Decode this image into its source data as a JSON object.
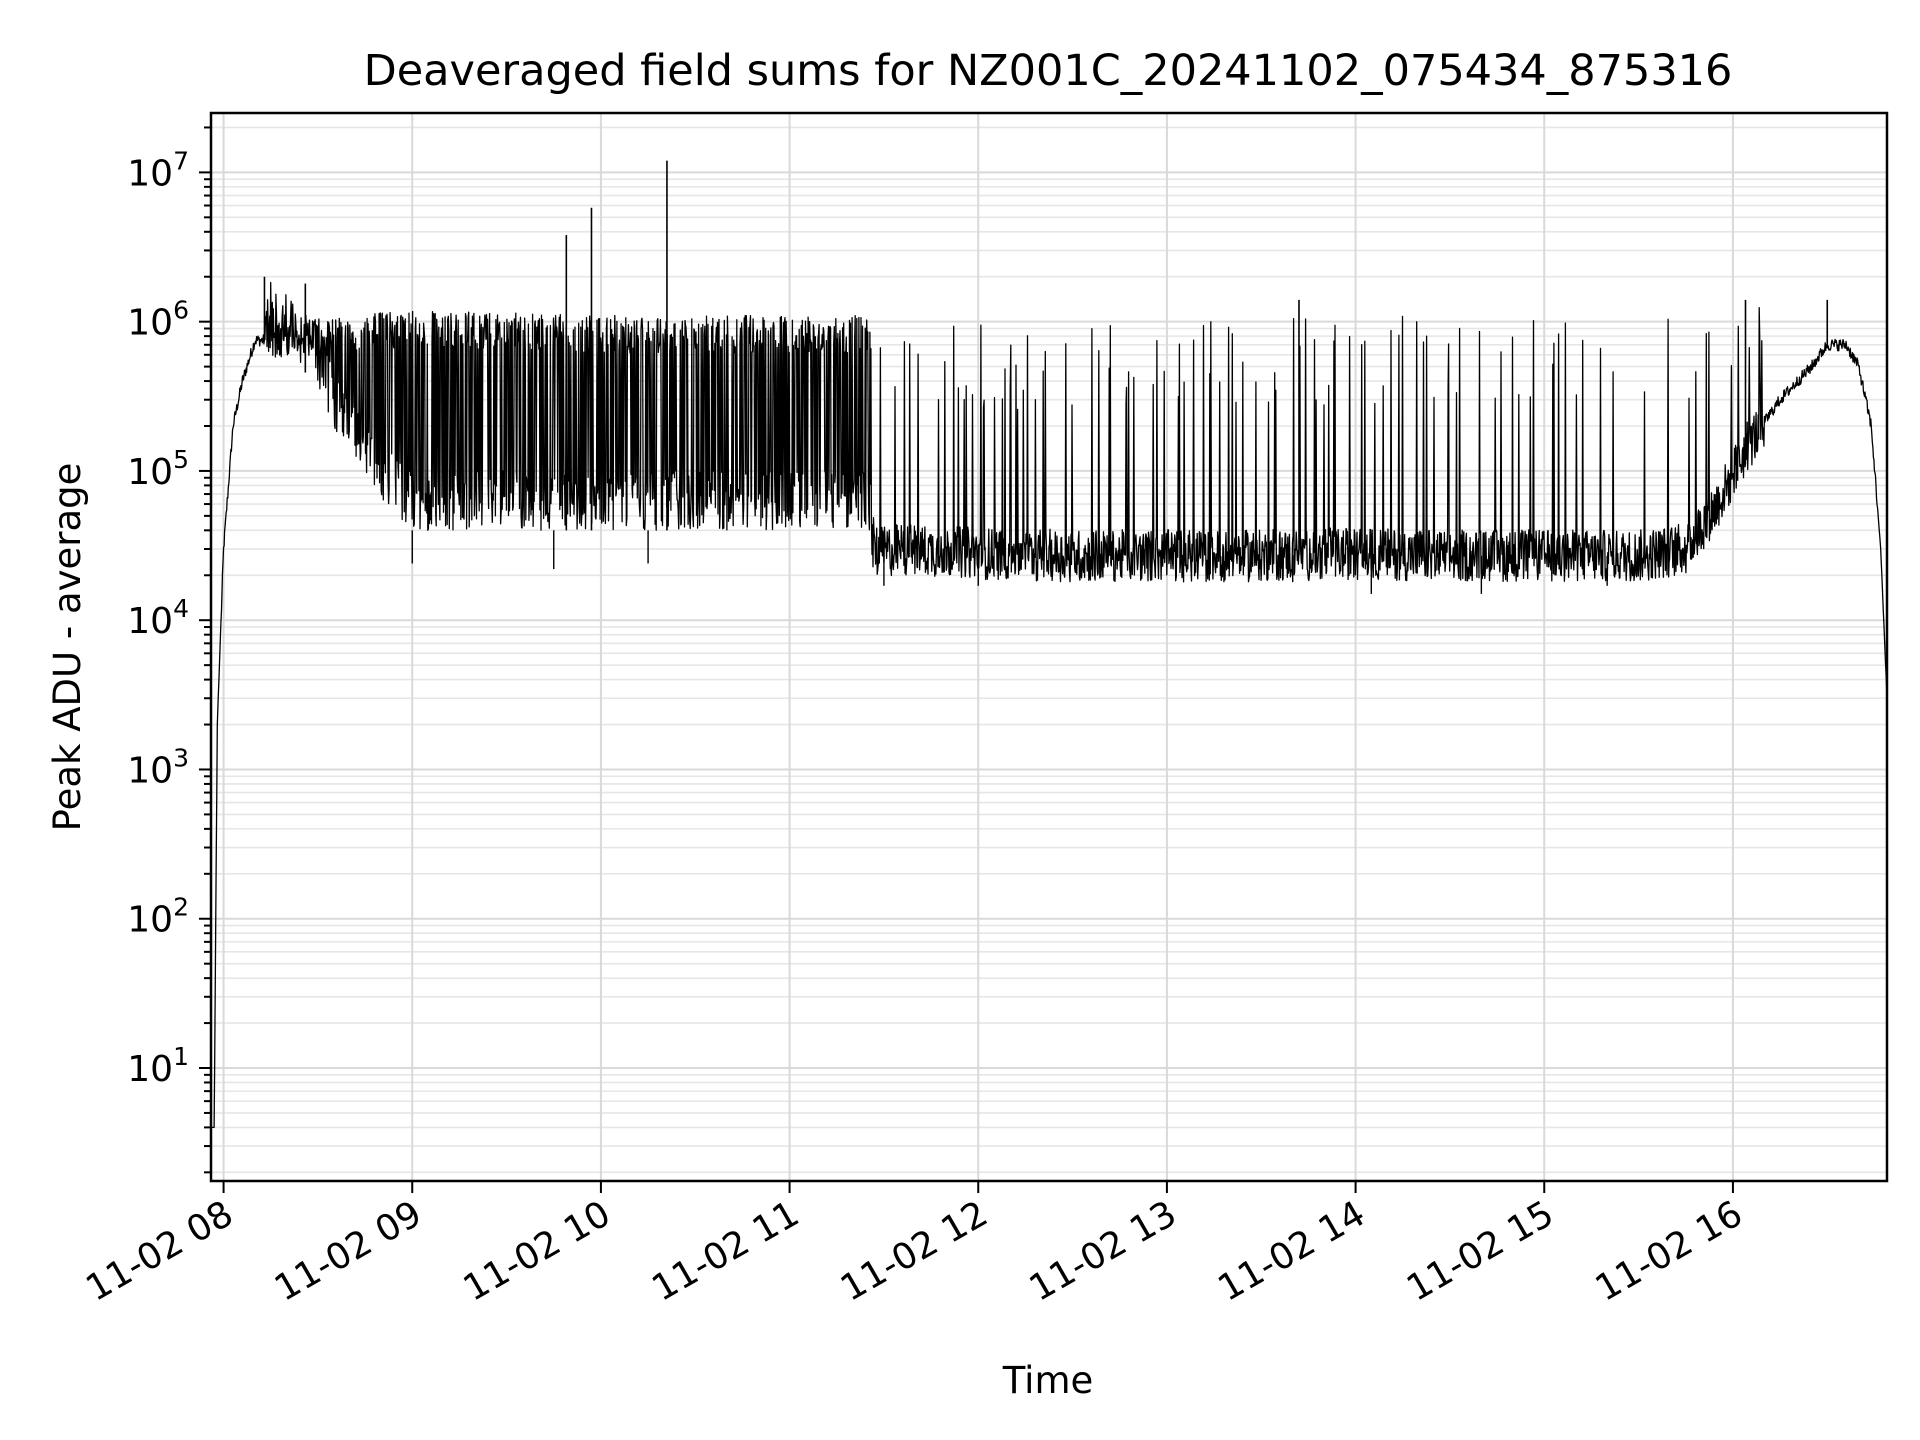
{
  "chart_data": {
    "type": "line",
    "title": "Deaveraged field sums for NZ001C_20241102_075434_875316",
    "xlabel": "Time",
    "ylabel": "Peak ADU - average",
    "yscale": "log",
    "ylim": [
      1.75,
      25000000.0
    ],
    "xlim": [
      "11-02 07:56",
      "11-02 16:49"
    ],
    "grid": true,
    "x_tick_labels": [
      "11-02 08",
      "11-02 09",
      "11-02 10",
      "11-02 11",
      "11-02 12",
      "11-02 13",
      "11-02 14",
      "11-02 15",
      "11-02 16"
    ],
    "y_tick_labels": [
      {
        "base": "10",
        "exp": "1",
        "value": 10
      },
      {
        "base": "10",
        "exp": "2",
        "value": 100
      },
      {
        "base": "10",
        "exp": "3",
        "value": 1000
      },
      {
        "base": "10",
        "exp": "4",
        "value": 10000
      },
      {
        "base": "10",
        "exp": "5",
        "value": 100000
      },
      {
        "base": "10",
        "exp": "6",
        "value": 1000000
      },
      {
        "base": "10",
        "exp": "7",
        "value": 10000000
      }
    ],
    "series": [
      {
        "color": "#000000",
        "baseline": {
          "x": [
            "11-02 07:56",
            "11-02 07:57",
            "11-02 07:58",
            "11-02 08:00",
            "11-02 08:03",
            "11-02 08:06",
            "11-02 08:10",
            "11-02 08:13",
            "11-02 08:18",
            "11-02 08:25",
            "11-02 08:35",
            "11-02 08:45",
            "11-02 09:00",
            "11-02 09:30",
            "11-02 10:00",
            "11-02 10:30",
            "11-02 11:00",
            "11-02 11:25",
            "11-02 11:28",
            "11-02 11:35",
            "11-02 12:00",
            "11-02 12:30",
            "11-02 13:00",
            "11-02 13:30",
            "11-02 14:00",
            "11-02 14:30",
            "11-02 15:00",
            "11-02 15:30",
            "11-02 15:45",
            "11-02 15:55",
            "11-02 16:05",
            "11-02 16:15",
            "11-02 16:25",
            "11-02 16:30",
            "11-02 16:36",
            "11-02 16:40",
            "11-02 16:44",
            "11-02 16:47",
            "11-02 16:49"
          ],
          "y": [
            4,
            4,
            2000,
            30000,
            200000,
            400000,
            750000,
            750000,
            700000,
            500000,
            200000,
            80000,
            40000,
            40000,
            40000,
            40000,
            40000,
            40000,
            28000,
            30000,
            28000,
            27000,
            27000,
            27000,
            28000,
            27000,
            27000,
            27000,
            30000,
            60000,
            150000,
            300000,
            500000,
            700000,
            700000,
            500000,
            200000,
            30000,
            3000
          ]
        },
        "upper_envelope": {
          "x": [
            "11-02 08:13",
            "11-02 09:00",
            "11-02 10:00",
            "11-02 11:25",
            "11-02 11:30",
            "11-02 12:30",
            "11-02 13:30",
            "11-02 14:30",
            "11-02 15:30",
            "11-02 16:10"
          ],
          "y": [
            1000000,
            1200000,
            1100000,
            1100000,
            900000,
            1000000,
            1100000,
            1100000,
            1100000,
            1300000
          ]
        },
        "peaks": [
          {
            "x": "11-02 08:13",
            "y": 2000000
          },
          {
            "x": "11-02 08:26",
            "y": 1800000
          },
          {
            "x": "11-02 09:49",
            "y": 3800000
          },
          {
            "x": "11-02 09:57",
            "y": 5800000
          },
          {
            "x": "11-02 10:21",
            "y": 12000000
          },
          {
            "x": "11-02 13:42",
            "y": 1400000
          },
          {
            "x": "11-02 16:04",
            "y": 1400000
          },
          {
            "x": "11-02 16:30",
            "y": 1400000
          }
        ],
        "dips": [
          {
            "x": "11-02 09:00",
            "y": 24000
          },
          {
            "x": "11-02 09:45",
            "y": 22000
          },
          {
            "x": "11-02 10:15",
            "y": 24000
          },
          {
            "x": "11-02 11:30",
            "y": 17000
          },
          {
            "x": "11-02 12:00",
            "y": 17000
          },
          {
            "x": "11-02 13:40",
            "y": 18000
          },
          {
            "x": "11-02 14:05",
            "y": 15000
          },
          {
            "x": "11-02 14:40",
            "y": 15000
          },
          {
            "x": "11-02 15:20",
            "y": 17000
          }
        ]
      }
    ]
  }
}
